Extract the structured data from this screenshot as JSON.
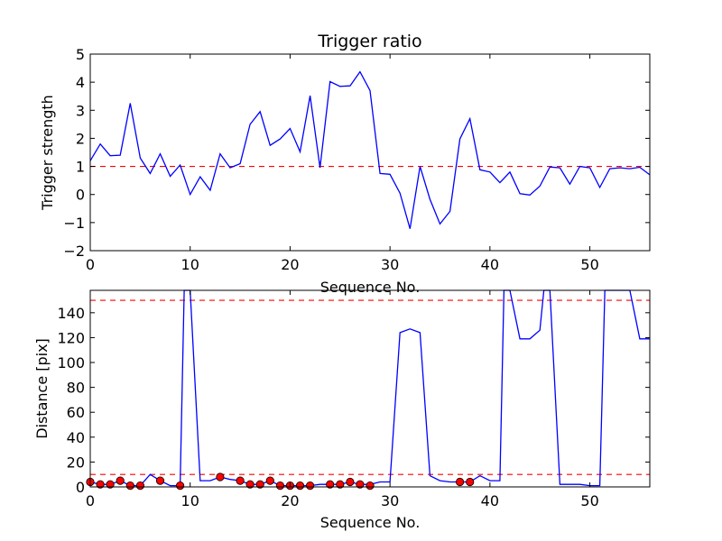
{
  "chart_data": [
    {
      "type": "line",
      "title": "Trigger ratio",
      "xlabel": "Sequence No.",
      "ylabel": "Trigger strength",
      "xlim": [
        0,
        56
      ],
      "ylim": [
        -2,
        5
      ],
      "xticks": [
        0,
        10,
        20,
        30,
        40,
        50
      ],
      "yticks": [
        -2,
        -1,
        0,
        1,
        2,
        3,
        4,
        5
      ],
      "ytick_labels": [
        "−2",
        "−1",
        "0",
        "1",
        "2",
        "3",
        "4",
        "5"
      ],
      "xtick_labels": [
        "0",
        "10",
        "20",
        "30",
        "40",
        "50"
      ],
      "grid": false,
      "threshold_lines": [
        1.0
      ],
      "series": [
        {
          "color": "#0000ff",
          "x": [
            0,
            1,
            2,
            3,
            4,
            5,
            6,
            7,
            8,
            9,
            10,
            11,
            12,
            13,
            14,
            15,
            16,
            17,
            18,
            19,
            20,
            21,
            22,
            23,
            24,
            25,
            26,
            27,
            28,
            29,
            30,
            31,
            32,
            33,
            34,
            35,
            36,
            37,
            38,
            39,
            40,
            41,
            42,
            43,
            44,
            45,
            46,
            47,
            48,
            49,
            50,
            51,
            52,
            53,
            54,
            55,
            56
          ],
          "values": [
            1.2,
            1.8,
            1.38,
            1.4,
            3.25,
            1.3,
            0.75,
            1.45,
            0.65,
            1.05,
            0.0,
            0.63,
            0.15,
            1.45,
            0.95,
            1.1,
            2.5,
            2.95,
            1.75,
            1.98,
            2.35,
            1.52,
            3.52,
            0.95,
            4.02,
            3.85,
            3.87,
            4.37,
            3.7,
            0.75,
            0.72,
            0.05,
            -1.22,
            1.0,
            -0.17,
            -1.05,
            -0.6,
            1.98,
            2.7,
            0.88,
            0.8,
            0.42,
            0.8,
            0.03,
            -0.02,
            0.3,
            0.98,
            0.95,
            0.37,
            1.0,
            0.95,
            0.25,
            0.92,
            0.95,
            0.92,
            0.97,
            0.7
          ]
        }
      ]
    },
    {
      "type": "line",
      "title": "",
      "xlabel": "Sequence No.",
      "ylabel": "Distance [pix]",
      "xlim": [
        0,
        56
      ],
      "ylim": [
        0,
        158
      ],
      "xticks": [
        0,
        10,
        20,
        30,
        40,
        50
      ],
      "yticks": [
        0,
        20,
        40,
        60,
        80,
        100,
        120,
        140
      ],
      "xtick_labels": [
        "0",
        "10",
        "20",
        "30",
        "40",
        "50"
      ],
      "ytick_labels": [
        "0",
        "20",
        "40",
        "60",
        "80",
        "100",
        "120",
        "140"
      ],
      "grid": false,
      "threshold_lines": [
        10,
        150
      ],
      "series": [
        {
          "color": "#0000ff",
          "x": [
            0,
            1,
            2,
            3,
            4,
            5,
            6,
            7,
            8,
            9,
            9.4,
            10,
            11,
            12,
            13,
            14,
            15,
            16,
            17,
            18,
            19,
            20,
            21,
            22,
            23,
            24,
            25,
            26,
            27,
            28,
            29,
            30,
            31,
            32,
            33,
            34,
            35,
            36,
            37,
            38,
            39,
            40,
            41,
            41.4,
            42,
            43,
            44,
            45,
            45.4,
            46,
            47,
            48,
            49,
            50,
            51,
            51.5,
            52,
            53,
            54,
            55,
            56
          ],
          "values": [
            4,
            2,
            2,
            5,
            1,
            1,
            10,
            5,
            1,
            1,
            158,
            158,
            5,
            5,
            8,
            6,
            5,
            2,
            2,
            5,
            1,
            1,
            1,
            1,
            2,
            2,
            2,
            4,
            2,
            2,
            4,
            4,
            124,
            127,
            124,
            9,
            5,
            4,
            4,
            4,
            9,
            5,
            5,
            158,
            158,
            119,
            119,
            126,
            158,
            158,
            2,
            2,
            2,
            1,
            1,
            158,
            158,
            158,
            158,
            119,
            119
          ]
        }
      ],
      "markers": {
        "color": "#ff0000",
        "x": [
          0,
          1,
          2,
          3,
          4,
          5,
          7,
          9,
          13,
          15,
          16,
          17,
          18,
          19,
          20,
          21,
          22,
          24,
          25,
          26,
          27,
          28,
          37,
          38
        ],
        "values": [
          4,
          2,
          2,
          5,
          1,
          1,
          5,
          1,
          8,
          5,
          2,
          2,
          5,
          1,
          1,
          1,
          1,
          2,
          2,
          4,
          2,
          1,
          4,
          4
        ]
      }
    }
  ]
}
